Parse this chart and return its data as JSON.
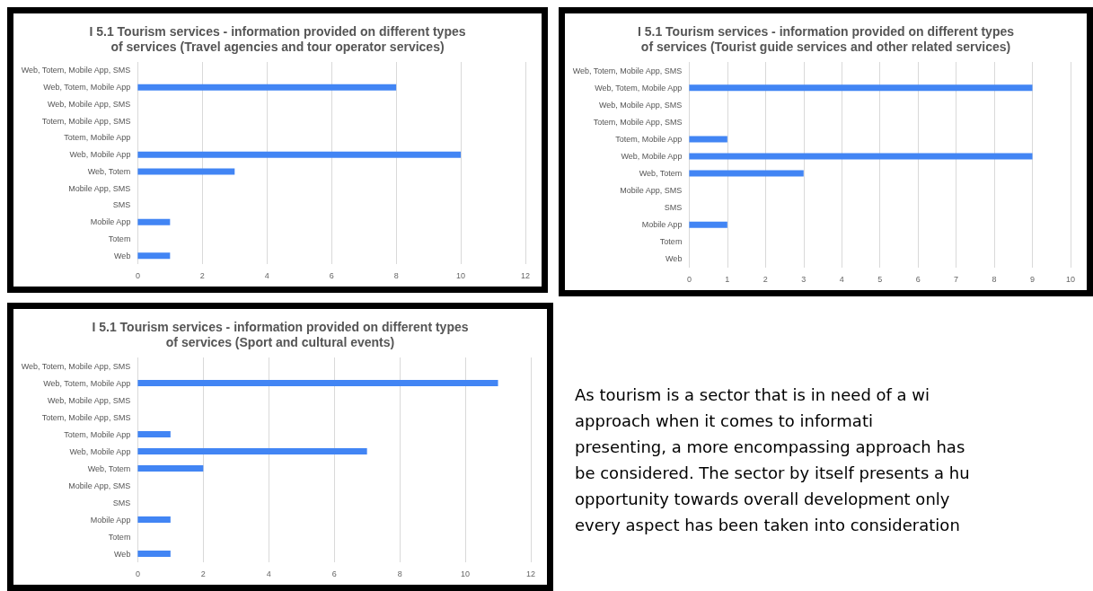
{
  "chart_data": [
    {
      "type": "bar",
      "orientation": "horizontal",
      "title": "I 5.1 Tourism services - information provided on different types of services (Travel agencies and tour operator services)",
      "categories": [
        "Web, Totem, Mobile App, SMS",
        "Web, Totem, Mobile App",
        "Web, Mobile App, SMS",
        "Totem, Mobile App, SMS",
        "Totem, Mobile App",
        "Web, Mobile App",
        "Web, Totem",
        "Mobile App, SMS",
        "SMS",
        "Mobile App",
        "Totem",
        "Web"
      ],
      "values": [
        0,
        8,
        0,
        0,
        0,
        10,
        3,
        0,
        0,
        1,
        0,
        1
      ],
      "color": "#4285f4",
      "xlim": [
        0,
        12
      ],
      "xticks": [
        0,
        2,
        4,
        6,
        8,
        10,
        12
      ],
      "grid": "x"
    },
    {
      "type": "bar",
      "orientation": "horizontal",
      "title": "I 5.1 Tourism services - information provided on different types of services (Tourist guide services and other related services)",
      "categories": [
        "Web, Totem, Mobile App, SMS",
        "Web, Totem, Mobile App",
        "Web, Mobile App, SMS",
        "Totem, Mobile App, SMS",
        "Totem, Mobile App",
        "Web, Mobile App",
        "Web, Totem",
        "Mobile App, SMS",
        "SMS",
        "Mobile App",
        "Totem",
        "Web"
      ],
      "values": [
        0,
        9,
        0,
        0,
        1,
        9,
        3,
        0,
        0,
        1,
        0,
        0
      ],
      "color": "#4285f4",
      "xlim": [
        0,
        10
      ],
      "xticks": [
        0,
        1,
        2,
        3,
        4,
        5,
        6,
        7,
        8,
        9,
        10
      ],
      "grid": "x"
    },
    {
      "type": "bar",
      "orientation": "horizontal",
      "title": "I 5.1 Tourism services - information provided on different types of services (Sport and cultural events)",
      "categories": [
        "Web, Totem, Mobile App, SMS",
        "Web, Totem, Mobile App",
        "Web, Mobile App, SMS",
        "Totem, Mobile App, SMS",
        "Totem, Mobile App",
        "Web, Mobile App",
        "Web, Totem",
        "Mobile App, SMS",
        "SMS",
        "Mobile App",
        "Totem",
        "Web"
      ],
      "values": [
        0,
        11,
        0,
        0,
        1,
        7,
        2,
        0,
        0,
        1,
        0,
        1
      ],
      "color": "#4285f4",
      "xlim": [
        0,
        12
      ],
      "xticks": [
        0,
        2,
        4,
        6,
        8,
        10,
        12
      ],
      "grid": "x"
    },
    {
      "type": "other",
      "annotations": [
        "As tourism is a sector that is in need of a wi",
        "approach when it comes to informati",
        "presenting, a more encompassing approach has",
        "be considered. The sector by itself presents a hu",
        "opportunity towards overall development only",
        "every aspect has been taken into consideration"
      ]
    }
  ]
}
